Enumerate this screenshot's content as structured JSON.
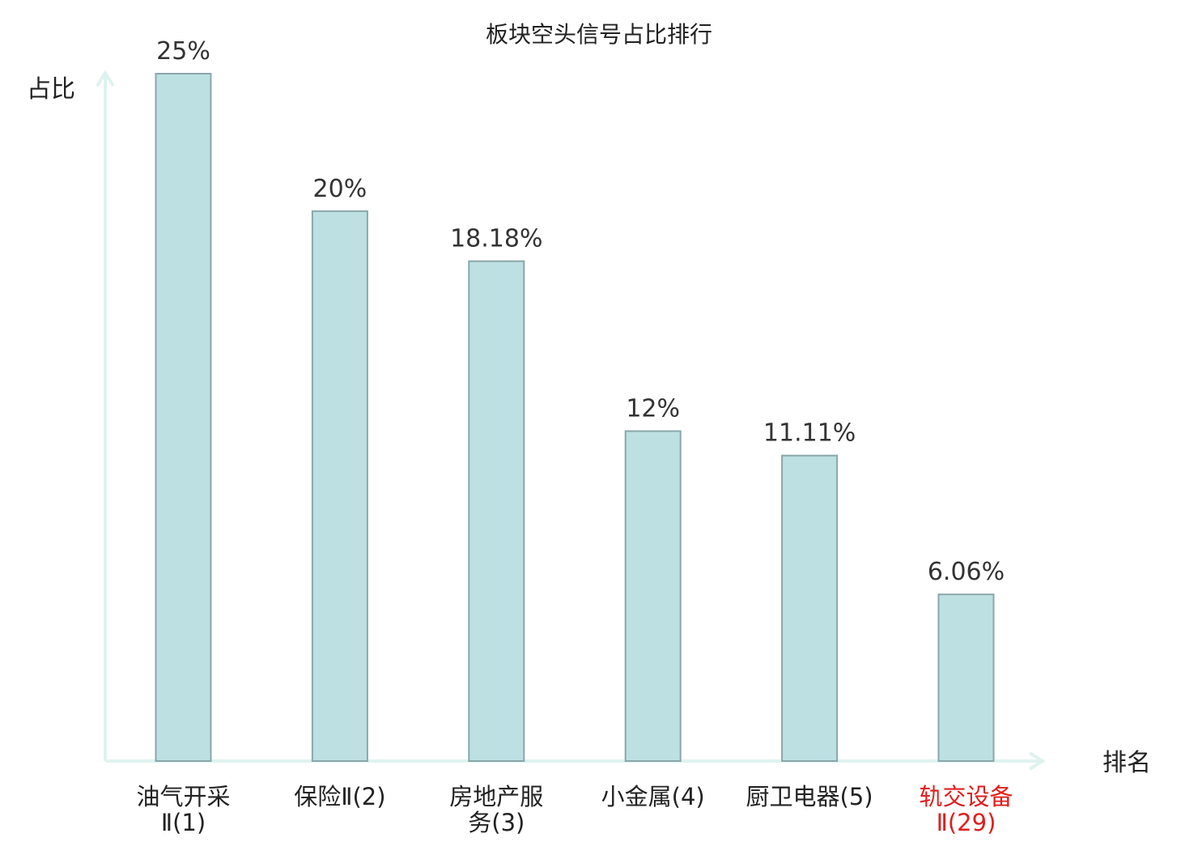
{
  "chart_data": {
    "type": "bar",
    "title": "板块空头信号占比排行",
    "ylabel": "占比",
    "xlabel": "排名",
    "ylim": [
      0,
      25
    ],
    "grid": false,
    "categories": [
      {
        "lines": [
          "油气开采",
          "Ⅱ(1)"
        ],
        "highlight": false
      },
      {
        "lines": [
          "保险Ⅱ(2)"
        ],
        "highlight": false
      },
      {
        "lines": [
          "房地产服",
          "务(3)"
        ],
        "highlight": false
      },
      {
        "lines": [
          "小金属(4)"
        ],
        "highlight": false
      },
      {
        "lines": [
          "厨卫电器(5)"
        ],
        "highlight": false
      },
      {
        "lines": [
          "轨交设备",
          "Ⅱ(29)"
        ],
        "highlight": true
      }
    ],
    "values": [
      25,
      20,
      18.18,
      12,
      11.11,
      6.06
    ],
    "value_labels": [
      "25%",
      "20%",
      "18.18%",
      "12%",
      "11.11%",
      "6.06%"
    ]
  },
  "colors": {
    "bar_fill": "#bde0e3",
    "bar_stroke": "#8aa7aa",
    "axis": "#dff2ef",
    "label": "#222222",
    "highlight": "#e01e1e"
  }
}
